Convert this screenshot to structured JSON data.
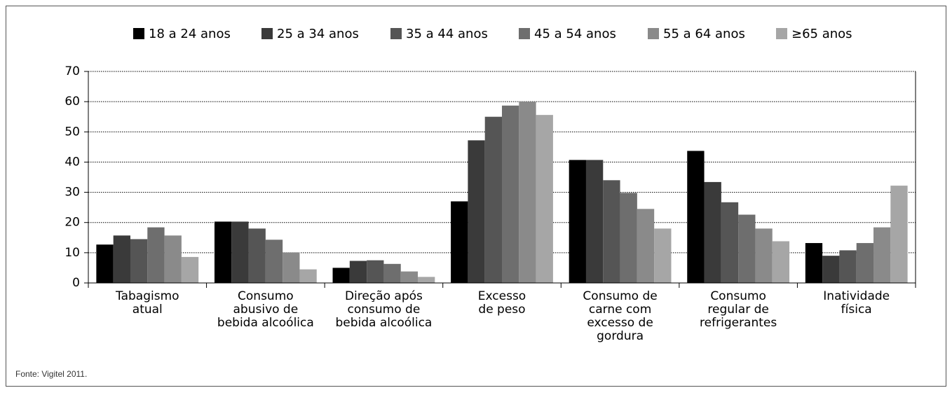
{
  "chart_data": {
    "type": "bar",
    "categories": [
      [
        "Tabagismo",
        "atual"
      ],
      [
        "Consumo",
        "abusivo de",
        "bebida alcoólica"
      ],
      [
        "Direção após",
        "consumo de",
        "bebida alcoólica"
      ],
      [
        "Excesso",
        "de peso"
      ],
      [
        "Consumo de",
        "carne com",
        "excesso de",
        "gordura"
      ],
      [
        "Consumo",
        "regular de",
        "refrigerantes"
      ],
      [
        "Inatividade",
        "física"
      ]
    ],
    "series": [
      {
        "name": "18 a 24 anos",
        "color": "#000000",
        "values": [
          12.7,
          20.3,
          5,
          27,
          40.7,
          43.7,
          13.2
        ]
      },
      {
        "name": "25 a 34 anos",
        "color": "#3a3a3a",
        "values": [
          15.7,
          20.3,
          7.3,
          47.2,
          40.7,
          33.4,
          9
        ]
      },
      {
        "name": "35 a 44 anos",
        "color": "#555555",
        "values": [
          14.5,
          18,
          7.5,
          55,
          34,
          26.7,
          10.8
        ]
      },
      {
        "name": "45 a 54 anos",
        "color": "#6e6e6e",
        "values": [
          18.4,
          14.3,
          6.3,
          58.7,
          29.8,
          22.6,
          13.2
        ]
      },
      {
        "name": "55 a 64 anos",
        "color": "#8a8a8a",
        "values": [
          15.7,
          10.1,
          3.8,
          60,
          24.5,
          18,
          18.4
        ]
      },
      {
        "name": "≥65 anos",
        "color": "#a6a6a6",
        "values": [
          8.6,
          4.5,
          2,
          55.6,
          18,
          13.8,
          32.2
        ]
      }
    ],
    "ylim": [
      0,
      70
    ],
    "yticks": [
      0,
      10,
      20,
      30,
      40,
      50,
      60,
      70
    ],
    "grid": true,
    "legend": "top",
    "note": "Fonte: Vigitel 2011."
  }
}
